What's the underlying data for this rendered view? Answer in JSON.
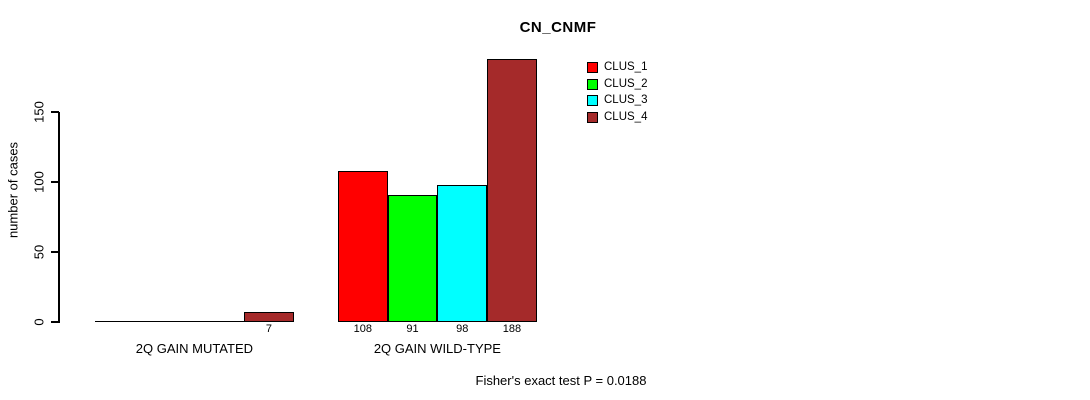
{
  "chart_data": {
    "type": "bar",
    "title": "CN_CNMF",
    "ylabel": "number of cases",
    "annotation": "Fisher's exact test P = 0.0188",
    "categories": [
      "2Q GAIN MUTATED",
      "2Q GAIN WILD-TYPE"
    ],
    "series": [
      {
        "name": "CLUS_1",
        "color": "#FF0000",
        "values": [
          0,
          108
        ]
      },
      {
        "name": "CLUS_2",
        "color": "#00FF00",
        "values": [
          0,
          91
        ]
      },
      {
        "name": "CLUS_3",
        "color": "#00FFFF",
        "values": [
          0,
          98
        ]
      },
      {
        "name": "CLUS_4",
        "color": "#A52A2A",
        "values": [
          7,
          188
        ]
      }
    ],
    "yticks": [
      0,
      50,
      100,
      150
    ],
    "ylim": [
      0,
      190
    ],
    "grid": false,
    "legend_position": "top-right",
    "value_labels": "shown under nonzero bars"
  }
}
